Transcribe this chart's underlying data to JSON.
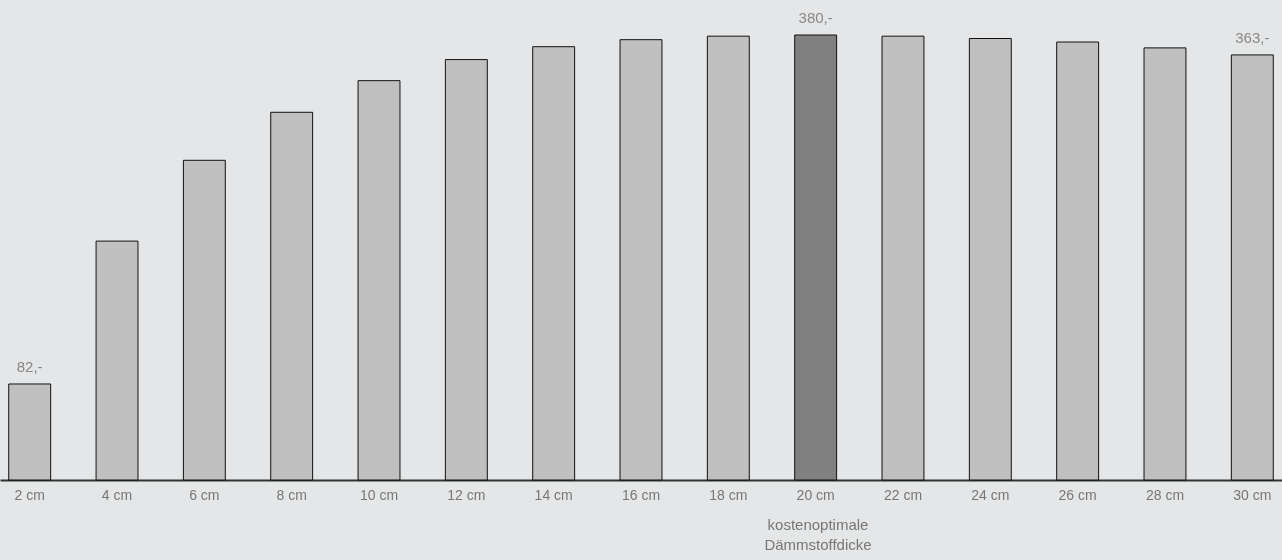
{
  "chart_data": {
    "type": "bar",
    "categories": [
      "2 cm",
      "4 cm",
      "6 cm",
      "8 cm",
      "10 cm",
      "12 cm",
      "14 cm",
      "16 cm",
      "18 cm",
      "20 cm",
      "22 cm",
      "24 cm",
      "26 cm",
      "28 cm",
      "30 cm"
    ],
    "values": [
      82,
      204,
      273,
      314,
      341,
      359,
      370,
      376,
      379,
      380,
      379,
      377,
      374,
      369,
      363
    ],
    "value_labels": [
      "82,-",
      null,
      null,
      null,
      null,
      null,
      null,
      null,
      null,
      "380,-",
      null,
      null,
      null,
      null,
      "363,-"
    ],
    "colors": [
      "#c0c0c0",
      "#c0c0c0",
      "#c0c0c0",
      "#c0c0c0",
      "#c0c0c0",
      "#c0c0c0",
      "#c0c0c0",
      "#c0c0c0",
      "#c0c0c0",
      "#808080",
      "#c0c0c0",
      "#c0c0c0",
      "#c0c0c0",
      "#c0c0c0",
      "#c0c0c0"
    ],
    "annotations": [
      "kostenoptimale Dämmstoffdicke"
    ],
    "grid": false
  }
}
